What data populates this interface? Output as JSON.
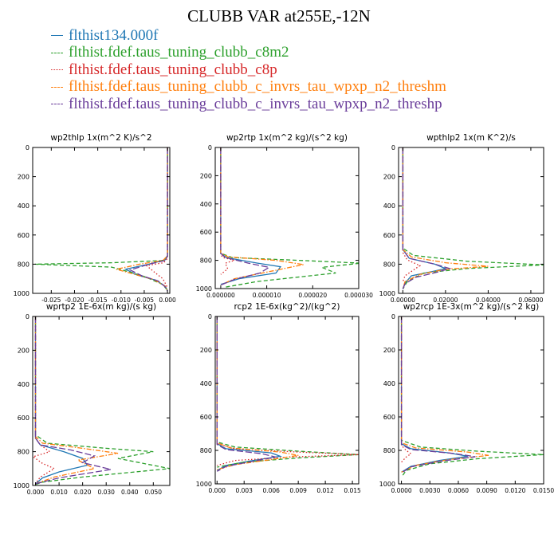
{
  "title": "CLUBB VAR at255E,-12N",
  "legend": [
    {
      "label": "flthist134.000f",
      "color": "#1f77b4",
      "dash": "solid"
    },
    {
      "label": "flthist.fdef.taus_tuning_clubb_c8m2",
      "color": "#2ca02c",
      "dash": "dash"
    },
    {
      "label": "flthist.fdef.taus_tuning_clubb_c8p",
      "color": "#d62728",
      "dash": "dot"
    },
    {
      "label": "flthist.fdef.taus_tuning_clubb_c_invrs_tau_wpxp_n2_threshm",
      "color": "#ff7f0e",
      "dash": "dashdot"
    },
    {
      "label": "flthist.fdef.taus_tuning_clubb_c_invrs_tau_wpxp_n2_threshp",
      "color": "#6a3d9a",
      "dash": "longdash"
    }
  ],
  "chart_data": [
    {
      "type": "line",
      "title": "wp2thlp  1x(m^2 K)/s^2",
      "xlim": [
        -0.029,
        0.0005
      ],
      "ylim": [
        1000,
        0
      ],
      "xticks": [
        -0.025,
        -0.02,
        -0.015,
        -0.01,
        -0.005,
        0.0
      ],
      "xtick_labels": [
        "-0.025",
        "-0.020",
        "-0.015",
        "-0.010",
        "-0.005",
        "0.000"
      ],
      "yticks": [
        0,
        200,
        400,
        600,
        800,
        1000
      ],
      "series": [
        {
          "x": [
            0,
            0,
            0,
            -0.0005,
            -0.004,
            -0.009,
            -0.0065,
            -0.0025,
            -0.0005,
            0
          ],
          "y": [
            0,
            600,
            740,
            770,
            800,
            835,
            875,
            910,
            950,
            980
          ]
        },
        {
          "x": [
            0,
            0,
            0,
            -0.001,
            -0.012,
            -0.0285,
            -0.012,
            -0.008,
            -0.0045,
            -0.001,
            0
          ],
          "y": [
            0,
            600,
            745,
            775,
            790,
            800,
            820,
            855,
            890,
            940,
            980
          ]
        },
        {
          "x": [
            0,
            0,
            0,
            -0.0008,
            -0.0045,
            -0.003,
            -0.001,
            0
          ],
          "y": [
            0,
            600,
            760,
            790,
            810,
            850,
            900,
            960
          ]
        },
        {
          "x": [
            0,
            0,
            0,
            -0.001,
            -0.006,
            -0.011,
            -0.007,
            -0.003,
            -0.0005,
            0
          ],
          "y": [
            0,
            600,
            745,
            775,
            800,
            835,
            870,
            905,
            950,
            980
          ]
        },
        {
          "x": [
            0,
            0,
            0,
            -0.0005,
            -0.004,
            -0.008,
            -0.0055,
            -0.002,
            -0.0005,
            0
          ],
          "y": [
            0,
            600,
            745,
            775,
            800,
            840,
            880,
            915,
            955,
            985
          ]
        }
      ]
    },
    {
      "type": "line",
      "title": "wp2rtp  1x(m^2 kg)/(s^2 kg)",
      "xlim": [
        -1.2e-06,
        3e-05
      ],
      "ylim": [
        1000,
        0
      ],
      "xticks": [
        0,
        1e-05,
        2e-05,
        3e-05
      ],
      "xtick_labels": [
        "0.000000",
        "0.000010",
        "0.000020",
        "0.000030"
      ],
      "yticks": [
        0,
        200,
        400,
        600,
        800,
        1000
      ],
      "series": [
        {
          "x": [
            0,
            0,
            0,
            1.2e-06,
            8e-06,
            1.3e-05,
            1.2e-05,
            4e-06,
            0
          ],
          "y": [
            0,
            600,
            750,
            780,
            820,
            845,
            890,
            930,
            970
          ]
        },
        {
          "x": [
            0,
            0,
            0,
            2.5e-06,
            1.7e-05,
            3.05e-05,
            2.2e-05,
            2.5e-05,
            8e-06,
            1e-06
          ],
          "y": [
            0,
            600,
            750,
            780,
            800,
            820,
            850,
            890,
            950,
            990
          ]
        },
        {
          "x": [
            0,
            0,
            0,
            5e-07,
            3e-06,
            1e-06,
            1.5e-06,
            0
          ],
          "y": [
            0,
            600,
            760,
            780,
            800,
            820,
            860,
            900
          ]
        },
        {
          "x": [
            0,
            0,
            0,
            1.5e-06,
            1.2e-05,
            1.8e-05,
            1.2e-05,
            3e-06,
            0
          ],
          "y": [
            0,
            600,
            745,
            775,
            800,
            830,
            870,
            930,
            975
          ]
        },
        {
          "x": [
            0,
            0,
            0,
            1e-06,
            6e-06,
            1.05e-05,
            8.5e-06,
            3e-06,
            0
          ],
          "y": [
            0,
            600,
            750,
            780,
            820,
            850,
            890,
            935,
            975
          ]
        }
      ]
    },
    {
      "type": "line",
      "title": "wpthlp2  1x(m K^2)/s",
      "xlim": [
        -0.002,
        0.066
      ],
      "ylim": [
        1000,
        0
      ],
      "xticks": [
        0,
        0.02,
        0.04,
        0.06
      ],
      "xtick_labels": [
        "0.00000",
        "0.02000",
        "0.04000",
        "0.06000"
      ],
      "yticks": [
        0,
        200,
        400,
        600,
        800,
        1000
      ],
      "series": [
        {
          "x": [
            0,
            0,
            0,
            0.003,
            0.015,
            0.02,
            0.014,
            0.004,
            0.001,
            0
          ],
          "y": [
            0,
            600,
            700,
            760,
            800,
            830,
            850,
            880,
            930,
            970
          ]
        },
        {
          "x": [
            0,
            0,
            0,
            0.005,
            0.03,
            0.066,
            0.03,
            0.01,
            0.002,
            0
          ],
          "y": [
            0,
            600,
            690,
            740,
            780,
            805,
            830,
            860,
            920,
            970
          ]
        },
        {
          "x": [
            0,
            0,
            0,
            0.002,
            0.008,
            0.005,
            0.001,
            0
          ],
          "y": [
            0,
            600,
            720,
            770,
            810,
            840,
            880,
            920
          ]
        },
        {
          "x": [
            0,
            0,
            0,
            0.004,
            0.02,
            0.04,
            0.02,
            0.008,
            0.001,
            0
          ],
          "y": [
            0,
            600,
            700,
            750,
            790,
            815,
            835,
            870,
            920,
            970
          ]
        },
        {
          "x": [
            0,
            0,
            0,
            0.003,
            0.015,
            0.022,
            0.016,
            0.006,
            0.001,
            0
          ],
          "y": [
            0,
            600,
            700,
            760,
            800,
            830,
            855,
            890,
            935,
            970
          ]
        }
      ]
    },
    {
      "type": "line",
      "title": "wprtp2  1E-6x(m kg)/(s kg)",
      "xlim": [
        -0.0012,
        0.057
      ],
      "ylim": [
        1000,
        0
      ],
      "xticks": [
        0,
        0.01,
        0.02,
        0.03,
        0.04,
        0.05
      ],
      "xtick_labels": [
        "0.000",
        "0.010",
        "0.020",
        "0.030",
        "0.040",
        "0.050"
      ],
      "yticks": [
        0,
        200,
        400,
        600,
        800,
        1000
      ],
      "series": [
        {
          "x": [
            0,
            0,
            0,
            0.002,
            0.012,
            0.02,
            0.022,
            0.01,
            0.003,
            0
          ],
          "y": [
            0,
            600,
            720,
            760,
            800,
            840,
            880,
            920,
            955,
            990
          ]
        },
        {
          "x": [
            0,
            0,
            0,
            0.005,
            0.03,
            0.05,
            0.035,
            0.057,
            0.02,
            0.003,
            0
          ],
          "y": [
            0,
            600,
            700,
            750,
            780,
            800,
            840,
            900,
            950,
            980,
            995
          ]
        },
        {
          "x": [
            0,
            0,
            0,
            0.002,
            0.006,
            -0.001,
            0.003,
            0.008,
            0.002,
            0
          ],
          "y": [
            0,
            600,
            720,
            760,
            800,
            830,
            870,
            900,
            950,
            990
          ]
        },
        {
          "x": [
            0,
            0,
            0,
            0.003,
            0.02,
            0.035,
            0.018,
            0.025,
            0.008,
            0
          ],
          "y": [
            0,
            600,
            710,
            750,
            780,
            810,
            850,
            900,
            950,
            990
          ]
        },
        {
          "x": [
            0,
            0,
            0,
            0.002,
            0.015,
            0.025,
            0.02,
            0.032,
            0.01,
            0
          ],
          "y": [
            0,
            600,
            720,
            760,
            790,
            825,
            865,
            905,
            955,
            990
          ]
        }
      ]
    },
    {
      "type": "line",
      "title": "rcp2  1E-6x(kg^2)/(kg^2)",
      "xlim": [
        -0.0002,
        0.0157
      ],
      "ylim": [
        1000,
        0
      ],
      "xticks": [
        0,
        0.003,
        0.006,
        0.009,
        0.012,
        0.015
      ],
      "xtick_labels": [
        "0.000",
        "0.003",
        "0.006",
        "0.009",
        "0.012",
        "0.015"
      ],
      "yticks": [
        0,
        200,
        400,
        600,
        800,
        1000
      ],
      "series": [
        {
          "x": [
            0,
            0,
            0,
            0.001,
            0.006,
            0.007,
            0.004,
            0.001,
            0
          ],
          "y": [
            0,
            600,
            760,
            790,
            815,
            835,
            860,
            890,
            920
          ]
        },
        {
          "x": [
            0,
            0,
            0,
            0.002,
            0.009,
            0.0157,
            0.009,
            0.003,
            0
          ],
          "y": [
            0,
            600,
            750,
            780,
            805,
            825,
            845,
            870,
            900
          ]
        },
        {
          "x": [
            0,
            0,
            0,
            0.002,
            0.009,
            0.0157,
            0.008,
            0.002,
            0
          ],
          "y": [
            0,
            600,
            760,
            790,
            810,
            825,
            840,
            860,
            890
          ]
        },
        {
          "x": [
            0,
            0,
            0,
            0.0015,
            0.007,
            0.009,
            0.006,
            0.002,
            0
          ],
          "y": [
            0,
            600,
            755,
            785,
            810,
            830,
            855,
            885,
            915
          ]
        },
        {
          "x": [
            0,
            0,
            0,
            0.001,
            0.005,
            0.0065,
            0.004,
            0.001,
            0
          ],
          "y": [
            0,
            600,
            765,
            795,
            820,
            840,
            865,
            895,
            925
          ]
        }
      ]
    },
    {
      "type": "line",
      "title": "wp2rcp  1E-3x(m^2 kg)/(s^2 kg)",
      "xlim": [
        -0.0003,
        0.015
      ],
      "ylim": [
        1000,
        0
      ],
      "xticks": [
        0,
        0.003,
        0.006,
        0.009,
        0.012,
        0.015
      ],
      "xtick_labels": [
        "0.0000",
        "0.0030",
        "0.0060",
        "0.0090",
        "0.0120",
        "0.0150"
      ],
      "yticks": [
        0,
        200,
        400,
        600,
        800,
        1000
      ],
      "series": [
        {
          "x": [
            0,
            0,
            0,
            0.001,
            0.005,
            0.007,
            0.004,
            0.001,
            0
          ],
          "y": [
            0,
            600,
            760,
            790,
            815,
            835,
            860,
            895,
            930
          ]
        },
        {
          "x": [
            0,
            0,
            0,
            0.002,
            0.008,
            0.015,
            0.008,
            0.003,
            0.0005,
            0
          ],
          "y": [
            0,
            600,
            740,
            780,
            805,
            825,
            850,
            880,
            920,
            960
          ]
        },
        {
          "x": [
            0,
            0,
            0,
            0.0005,
            0.001,
            0.0005,
            0
          ],
          "y": [
            0,
            600,
            770,
            800,
            820,
            840,
            870
          ]
        },
        {
          "x": [
            0,
            0,
            0,
            0.0015,
            0.007,
            0.0092,
            0.005,
            0.0015,
            0
          ],
          "y": [
            0,
            600,
            755,
            785,
            810,
            830,
            855,
            890,
            930
          ]
        },
        {
          "x": [
            0,
            0,
            0,
            0.001,
            0.0055,
            0.0078,
            0.0045,
            0.001,
            0
          ],
          "y": [
            0,
            600,
            765,
            795,
            818,
            838,
            862,
            898,
            935
          ]
        }
      ]
    }
  ]
}
